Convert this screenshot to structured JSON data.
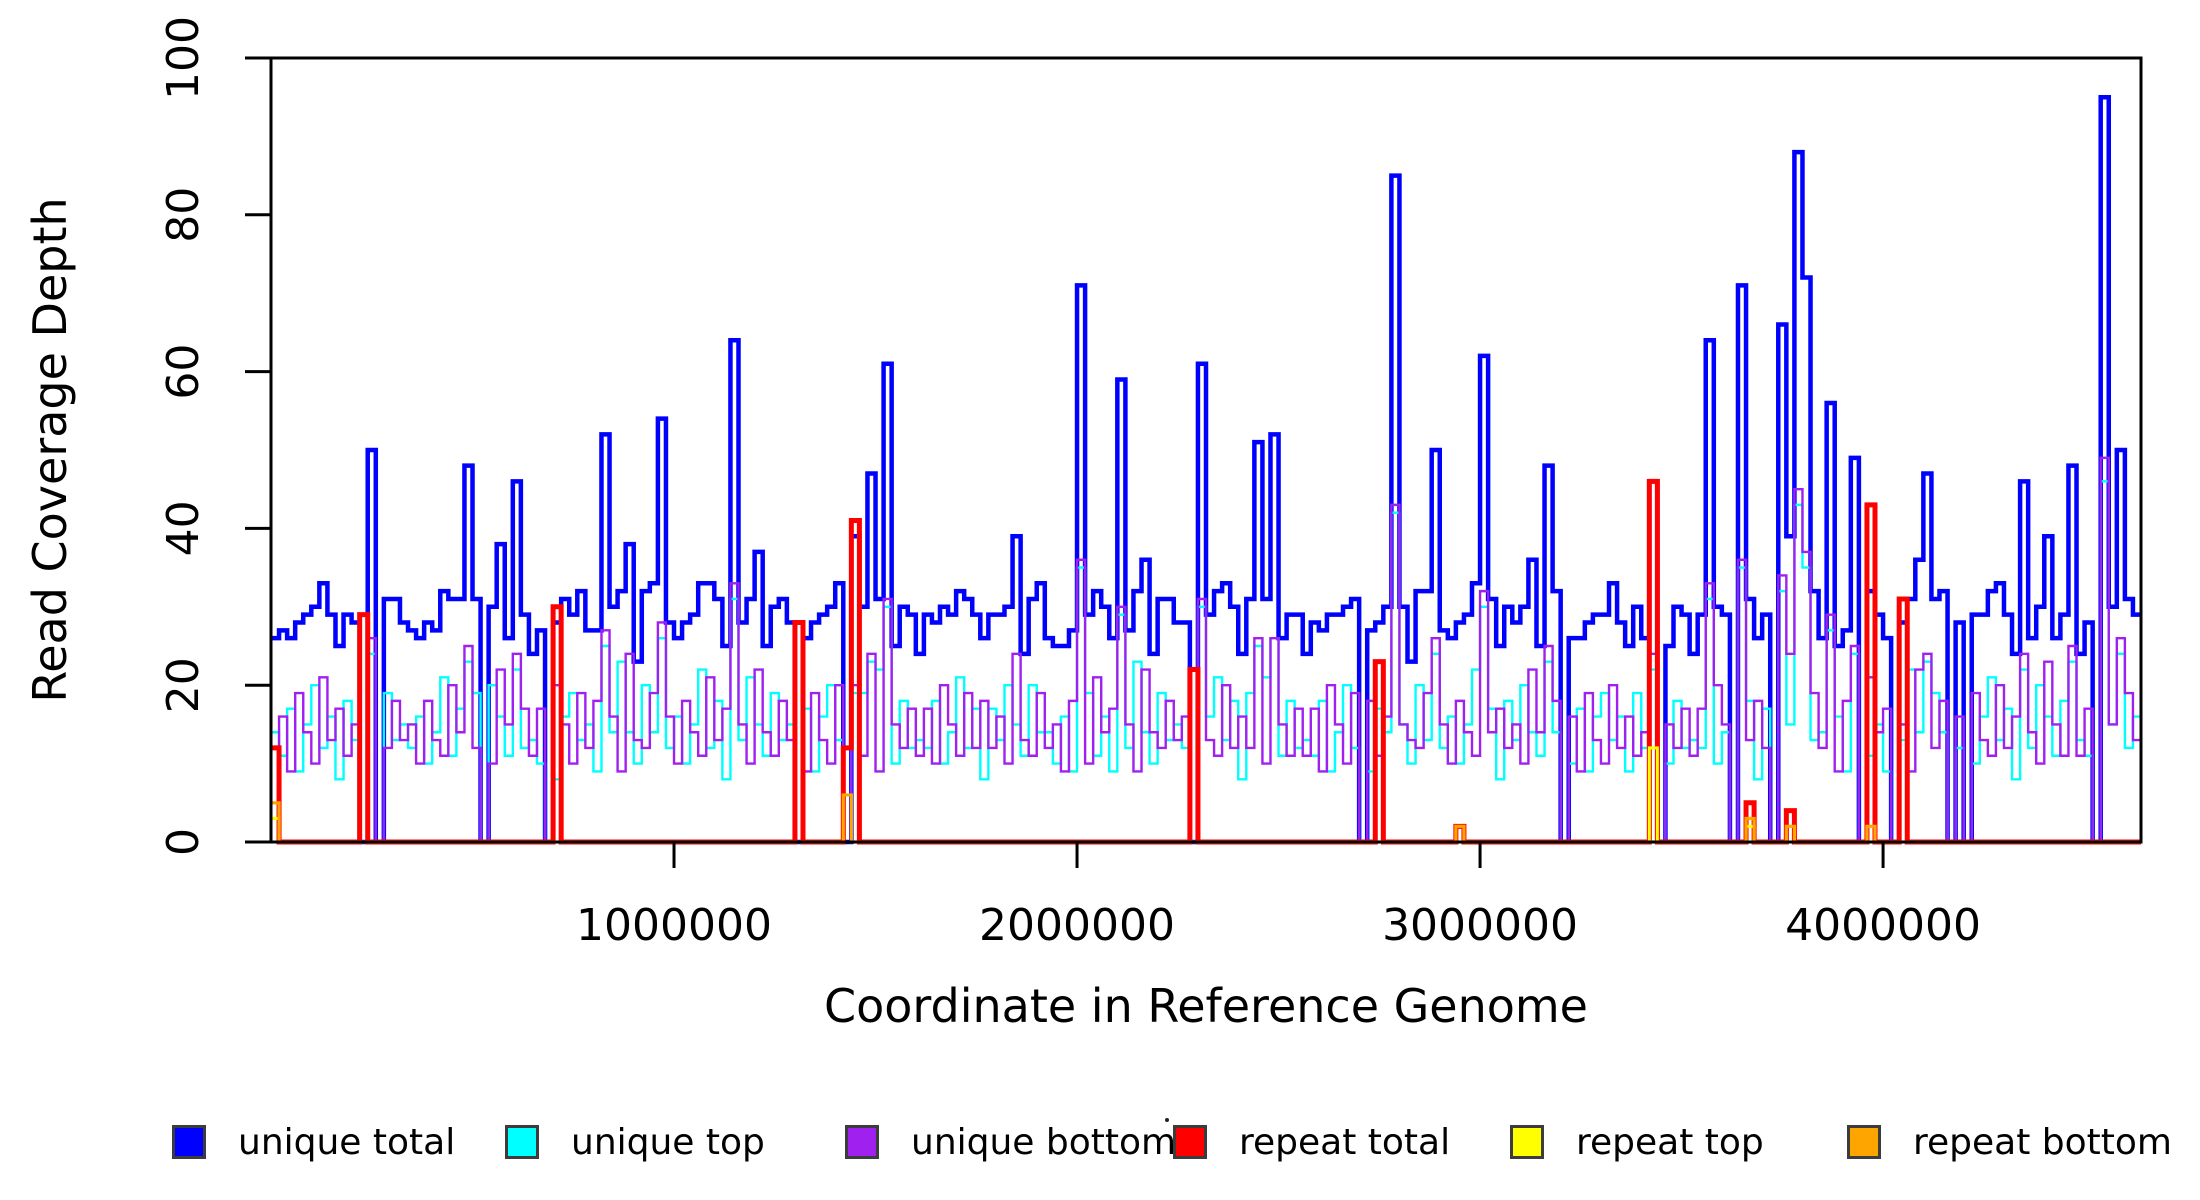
{
  "figure": {
    "background": "#ffffff",
    "plot_box_color": "#000000"
  },
  "chart_data": {
    "type": "line",
    "step": true,
    "title": "",
    "xlabel": "Coordinate in Reference Genome",
    "ylabel": "Read Coverage Depth",
    "xlim": [
      0,
      4640000
    ],
    "ylim": [
      0,
      100
    ],
    "grid": false,
    "legend_position": "bottom",
    "window_bp": 20000,
    "n_windows": 232,
    "x_ticks": [
      {
        "value": 1000000,
        "label": "1000000"
      },
      {
        "value": 2000000,
        "label": "2000000"
      },
      {
        "value": 3000000,
        "label": "3000000"
      },
      {
        "value": 4000000,
        "label": "4000000"
      }
    ],
    "y_ticks": [
      {
        "value": 0,
        "label": "0"
      },
      {
        "value": 20,
        "label": "20"
      },
      {
        "value": 40,
        "label": "40"
      },
      {
        "value": 60,
        "label": "60"
      },
      {
        "value": 80,
        "label": "80"
      },
      {
        "value": 100,
        "label": "100"
      }
    ],
    "series": [
      {
        "name": "unique total",
        "color": "#0000FF",
        "values": [
          26,
          27,
          26,
          28,
          29,
          30,
          33,
          29,
          25,
          29,
          28,
          0,
          50,
          0,
          31,
          31,
          28,
          27,
          26,
          28,
          27,
          32,
          31,
          31,
          48,
          31,
          0,
          30,
          38,
          26,
          46,
          29,
          24,
          27,
          0,
          28,
          31,
          29,
          32,
          27,
          27,
          52,
          30,
          32,
          38,
          23,
          32,
          33,
          54,
          28,
          26,
          28,
          29,
          33,
          33,
          31,
          25,
          64,
          28,
          31,
          37,
          25,
          30,
          31,
          28,
          0,
          26,
          28,
          29,
          30,
          33,
          0,
          39,
          30,
          47,
          31,
          61,
          25,
          30,
          29,
          24,
          29,
          28,
          30,
          29,
          32,
          31,
          29,
          26,
          29,
          29,
          30,
          39,
          24,
          31,
          33,
          26,
          25,
          25,
          27,
          71,
          29,
          32,
          30,
          26,
          59,
          27,
          32,
          36,
          24,
          31,
          31,
          28,
          28,
          0,
          61,
          29,
          32,
          33,
          30,
          24,
          31,
          51,
          31,
          52,
          26,
          29,
          29,
          24,
          28,
          27,
          29,
          29,
          30,
          31,
          0,
          27,
          28,
          30,
          85,
          30,
          23,
          32,
          32,
          50,
          27,
          26,
          28,
          29,
          33,
          62,
          31,
          25,
          30,
          28,
          30,
          36,
          25,
          48,
          32,
          0,
          26,
          26,
          28,
          29,
          29,
          33,
          28,
          25,
          30,
          26,
          46,
          0,
          25,
          30,
          29,
          24,
          29,
          64,
          30,
          29,
          0,
          71,
          31,
          26,
          29,
          0,
          66,
          39,
          88,
          72,
          32,
          26,
          56,
          25,
          27,
          49,
          0,
          32,
          29,
          26,
          0,
          28,
          31,
          36,
          47,
          31,
          32,
          0,
          28,
          0,
          29,
          29,
          32,
          33,
          29,
          24,
          46,
          26,
          30,
          39,
          26,
          29,
          48,
          24,
          28,
          0,
          95,
          30,
          50,
          31,
          29
        ]
      },
      {
        "name": "unique top",
        "color": "#00FFFF",
        "values": [
          14,
          11,
          17,
          9,
          15,
          20,
          12,
          16,
          8,
          18,
          13,
          0,
          24,
          0,
          19,
          13,
          15,
          12,
          16,
          10,
          14,
          21,
          11,
          17,
          23,
          19,
          0,
          20,
          16,
          11,
          22,
          12,
          13,
          10,
          0,
          8,
          16,
          19,
          13,
          15,
          9,
          25,
          14,
          23,
          14,
          10,
          20,
          14,
          26,
          12,
          16,
          10,
          15,
          22,
          12,
          18,
          8,
          31,
          13,
          21,
          15,
          11,
          19,
          13,
          15,
          0,
          17,
          9,
          16,
          20,
          13,
          0,
          19,
          19,
          23,
          22,
          30,
          10,
          18,
          12,
          13,
          12,
          18,
          10,
          14,
          21,
          12,
          17,
          8,
          17,
          13,
          20,
          15,
          11,
          20,
          14,
          14,
          10,
          16,
          9,
          35,
          19,
          11,
          16,
          9,
          29,
          12,
          23,
          14,
          10,
          19,
          13,
          15,
          12,
          0,
          30,
          16,
          21,
          13,
          18,
          8,
          19,
          25,
          21,
          26,
          11,
          18,
          12,
          13,
          11,
          18,
          9,
          14,
          20,
          12,
          0,
          9,
          17,
          14,
          42,
          15,
          10,
          20,
          13,
          24,
          12,
          16,
          10,
          15,
          22,
          30,
          17,
          8,
          18,
          13,
          20,
          14,
          11,
          23,
          14,
          0,
          10,
          17,
          9,
          16,
          19,
          13,
          16,
          9,
          19,
          12,
          22,
          0,
          10,
          18,
          12,
          13,
          12,
          31,
          10,
          14,
          0,
          35,
          18,
          8,
          17,
          0,
          32,
          15,
          43,
          35,
          13,
          14,
          27,
          16,
          9,
          24,
          0,
          11,
          15,
          9,
          0,
          13,
          22,
          14,
          23,
          19,
          14,
          0,
          12,
          0,
          10,
          16,
          21,
          13,
          17,
          8,
          22,
          12,
          20,
          16,
          11,
          18,
          23,
          13,
          11,
          0,
          46,
          15,
          24,
          12,
          16
        ]
      },
      {
        "name": "unique bottom",
        "color": "#A020F0",
        "values": [
          12,
          16,
          9,
          19,
          14,
          10,
          21,
          13,
          17,
          11,
          15,
          0,
          26,
          0,
          12,
          18,
          13,
          15,
          10,
          18,
          13,
          11,
          20,
          14,
          25,
          12,
          0,
          10,
          22,
          15,
          24,
          17,
          11,
          17,
          0,
          20,
          15,
          10,
          19,
          12,
          18,
          27,
          16,
          9,
          24,
          13,
          12,
          19,
          28,
          16,
          10,
          18,
          14,
          11,
          21,
          13,
          17,
          33,
          15,
          10,
          22,
          14,
          11,
          18,
          13,
          0,
          9,
          19,
          13,
          10,
          20,
          0,
          20,
          11,
          24,
          9,
          31,
          15,
          12,
          17,
          11,
          17,
          10,
          20,
          15,
          11,
          19,
          12,
          18,
          12,
          16,
          10,
          24,
          13,
          11,
          19,
          12,
          15,
          9,
          18,
          36,
          10,
          21,
          14,
          17,
          30,
          15,
          9,
          22,
          14,
          12,
          18,
          13,
          16,
          0,
          31,
          13,
          11,
          20,
          12,
          16,
          12,
          26,
          10,
          26,
          15,
          11,
          17,
          11,
          17,
          9,
          20,
          15,
          10,
          19,
          0,
          18,
          11,
          16,
          43,
          15,
          13,
          12,
          19,
          26,
          15,
          10,
          18,
          14,
          11,
          32,
          14,
          17,
          12,
          15,
          10,
          22,
          14,
          25,
          18,
          0,
          16,
          9,
          19,
          13,
          10,
          20,
          12,
          16,
          11,
          14,
          24,
          0,
          15,
          12,
          17,
          11,
          17,
          33,
          20,
          15,
          0,
          36,
          13,
          18,
          12,
          0,
          34,
          24,
          45,
          37,
          19,
          12,
          29,
          9,
          18,
          25,
          0,
          21,
          14,
          17,
          0,
          15,
          9,
          22,
          24,
          12,
          18,
          0,
          16,
          0,
          19,
          13,
          11,
          20,
          12,
          16,
          24,
          14,
          10,
          23,
          15,
          11,
          25,
          11,
          17,
          0,
          49,
          15,
          26,
          19,
          13
        ]
      },
      {
        "name": "repeat total",
        "color": "#FF0000",
        "values": {
          "base": 0,
          "spikes": {
            "0": 12,
            "11": 29,
            "35": 30,
            "65": 28,
            "71": 12,
            "72": 41,
            "114": 22,
            "137": 23,
            "147": 2,
            "171": 46,
            "183": 5,
            "188": 4,
            "198": 43,
            "202": 31
          }
        }
      },
      {
        "name": "repeat top",
        "color": "#FFFF00",
        "values": {
          "base": 0,
          "spikes": {
            "0": 3,
            "171": 12,
            "183": 2
          }
        }
      },
      {
        "name": "repeat bottom",
        "color": "#FFA500",
        "values": {
          "base": 0,
          "spikes": {
            "0": 5,
            "71": 6,
            "147": 2,
            "183": 3,
            "188": 2,
            "198": 2
          }
        }
      }
    ]
  },
  "legend": {
    "items": [
      {
        "label": "unique total",
        "color": "#0000FF"
      },
      {
        "label": "unique top",
        "color": "#00FFFF"
      },
      {
        "label": "unique bottom",
        "color": "#A020F0"
      },
      {
        "label": "repeat total",
        "color": "#FF0000"
      },
      {
        "label": "repeat top",
        "color": "#FFFF00"
      },
      {
        "label": "repeat bottom",
        "color": "#FFA500"
      }
    ]
  }
}
